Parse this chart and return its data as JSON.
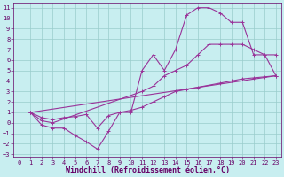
{
  "xlabel": "Windchill (Refroidissement éolien,°C)",
  "xlim": [
    -0.5,
    23.5
  ],
  "ylim": [
    -3.2,
    11.5
  ],
  "bg_color": "#c8eef0",
  "line_color": "#993399",
  "grid_color": "#99cccc",
  "line1_x": [
    1,
    2,
    3,
    4,
    5,
    6,
    7,
    8,
    9,
    10,
    11,
    12,
    13,
    14,
    15,
    16,
    17,
    18,
    19,
    20,
    21,
    22,
    23
  ],
  "line1_y": [
    1.0,
    -0.2,
    -0.5,
    -0.5,
    -1.2,
    -1.8,
    -2.5,
    -0.8,
    1.0,
    1.0,
    5.0,
    6.5,
    5.0,
    7.0,
    10.3,
    11.0,
    11.0,
    10.5,
    9.6,
    9.6,
    6.5,
    6.5,
    4.5
  ],
  "line2_x": [
    1,
    2,
    3,
    11,
    12,
    13,
    14,
    15,
    16,
    17,
    18,
    19,
    20,
    21,
    22,
    23
  ],
  "line2_y": [
    1.0,
    0.2,
    0.0,
    3.0,
    3.5,
    4.5,
    5.0,
    5.5,
    6.5,
    7.5,
    7.5,
    7.5,
    7.5,
    7.0,
    6.5,
    6.5
  ],
  "line3_x": [
    1,
    23
  ],
  "line3_y": [
    1.0,
    4.5
  ],
  "line4_x": [
    1,
    2,
    3,
    4,
    5,
    6,
    7,
    8,
    9,
    10,
    11,
    12,
    13,
    14,
    15,
    16,
    17,
    18,
    19,
    20,
    21,
    22,
    23
  ],
  "line4_y": [
    1.0,
    0.5,
    0.3,
    0.5,
    0.6,
    0.8,
    -0.5,
    0.7,
    1.0,
    1.2,
    1.5,
    2.0,
    2.5,
    3.0,
    3.2,
    3.4,
    3.6,
    3.8,
    4.0,
    4.2,
    4.3,
    4.4,
    4.5
  ],
  "xticks": [
    0,
    1,
    2,
    3,
    4,
    5,
    6,
    7,
    8,
    9,
    10,
    11,
    12,
    13,
    14,
    15,
    16,
    17,
    18,
    19,
    20,
    21,
    22,
    23
  ],
  "yticks": [
    -3,
    -2,
    -1,
    0,
    1,
    2,
    3,
    4,
    5,
    6,
    7,
    8,
    9,
    10,
    11
  ],
  "font_color": "#660066",
  "tick_fontsize": 5.0,
  "xlabel_fontsize": 6.0
}
